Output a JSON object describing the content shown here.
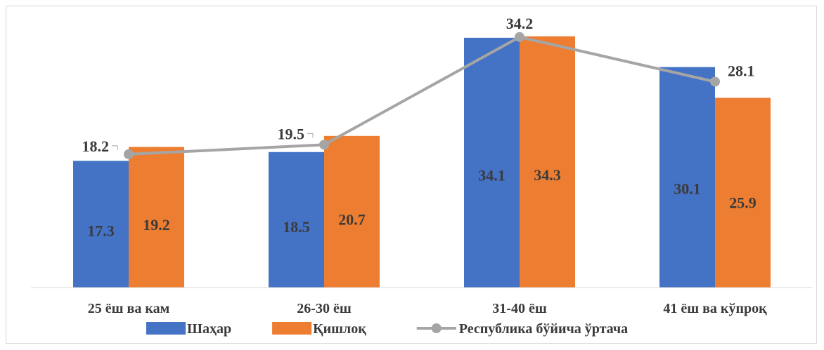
{
  "chart_data": {
    "type": "bar",
    "title": "",
    "xlabel": "",
    "ylabel": "",
    "ylim": [
      0,
      36
    ],
    "grid": false,
    "legend_position": "bottom",
    "categories": [
      "25 ёш ва кам",
      "26-30 ёш",
      "31-40 ёш",
      "41 ёш ва кўпроқ"
    ],
    "series": [
      {
        "name": "Шаҳар",
        "kind": "bar",
        "color": "#4472c4",
        "values": [
          17.3,
          18.5,
          34.1,
          30.1
        ]
      },
      {
        "name": "Қишлоқ",
        "kind": "bar",
        "color": "#ed7d31",
        "values": [
          19.2,
          20.7,
          34.3,
          25.9
        ]
      },
      {
        "name": "Республика бўйича ўртача",
        "kind": "line",
        "color": "#a5a5a5",
        "values": [
          18.2,
          19.5,
          34.2,
          28.1
        ]
      }
    ]
  }
}
